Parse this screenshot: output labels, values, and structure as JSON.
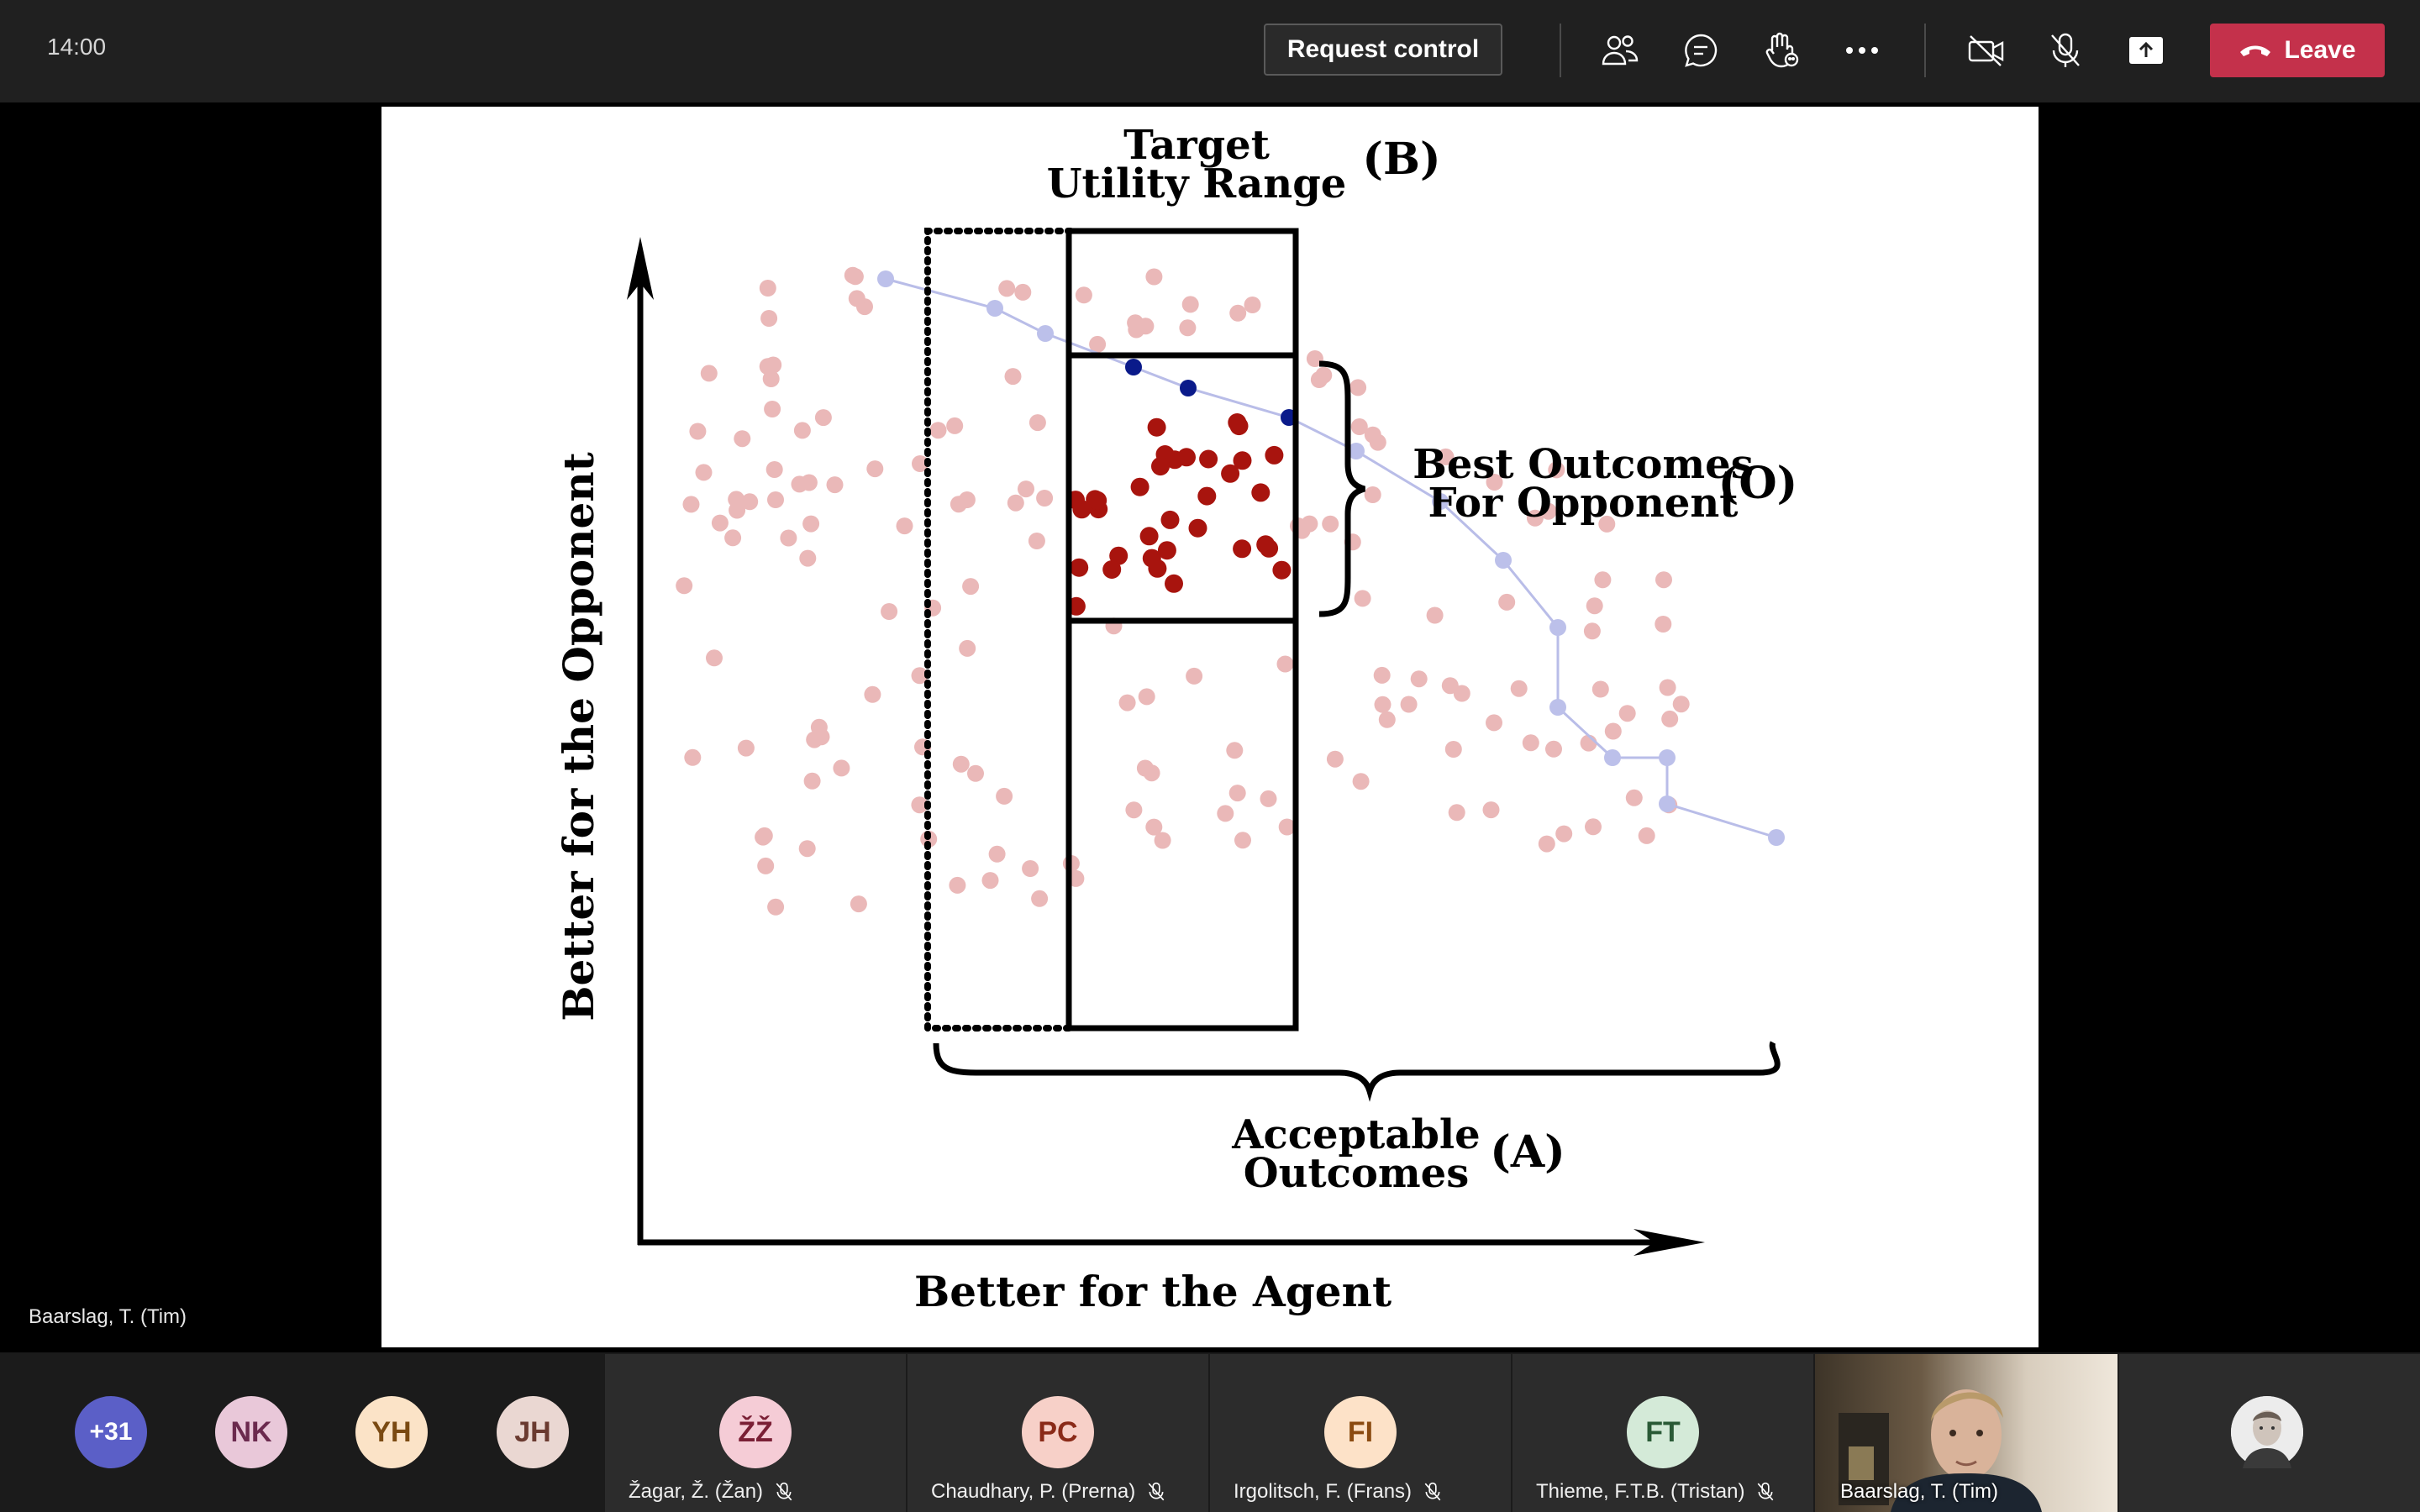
{
  "topbar": {
    "time": "14:00",
    "request_control": "Request control",
    "leave": "Leave"
  },
  "slide": {
    "target_label_line1": "Target",
    "target_label_line2": "Utility Range",
    "target_tag": "(B)",
    "best_label_line1": "Best Outcomes",
    "best_label_line2": "For Opponent",
    "best_tag": "(O)",
    "acceptable_line1": "Acceptable",
    "acceptable_line2": "Outcomes",
    "acceptable_tag": "(A)",
    "y_axis": "Better for the Opponent",
    "x_axis": "Better for the Agent"
  },
  "presenter_name": "Baarslag, T. (Tim)",
  "participants": {
    "overflow": "+31",
    "avatars": [
      {
        "initials": "NK",
        "color": "#e9c8d9",
        "text": "#6b2a4e"
      },
      {
        "initials": "YH",
        "color": "#fbe3c7",
        "text": "#7a4a12"
      },
      {
        "initials": "JH",
        "color": "#ead7d2",
        "text": "#6a3a30"
      }
    ],
    "tiles": [
      {
        "initials": "ŽŽ",
        "name": "Žagar, Ž. (Žan)",
        "color": "#f5ccd6",
        "text": "#7a1f35"
      },
      {
        "initials": "PC",
        "name": "Chaudhary, P. (Prerna)",
        "color": "#f7d0c8",
        "text": "#8a2a18"
      },
      {
        "initials": "FI",
        "name": "Irgolitsch, F. (Frans)",
        "color": "#fde2c8",
        "text": "#8a4a10"
      },
      {
        "initials": "FT",
        "name": "Thieme, F.T.B. (Tristan)",
        "color": "#d4ead8",
        "text": "#2a5a36"
      }
    ],
    "video_name": "Baarslag, T. (Tim)"
  },
  "icons": {
    "people": "people-icon",
    "chat": "chat-icon",
    "reactions": "raise-hand-icon",
    "more": "more-icon",
    "camera": "camera-off-icon",
    "mic": "mic-off-icon",
    "share": "share-icon",
    "phone": "phone-icon"
  }
}
